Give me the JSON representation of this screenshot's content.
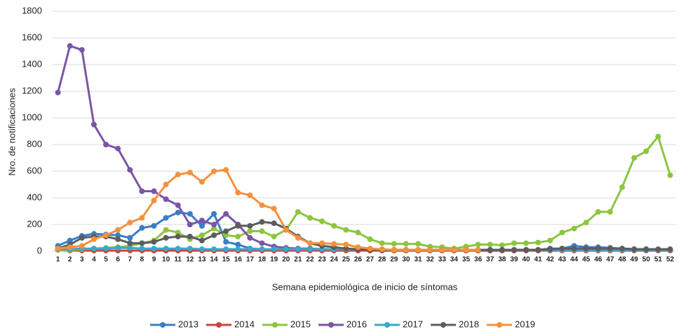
{
  "chart_data": {
    "type": "line",
    "y_label": "Nro. de notificaciones",
    "x_label": "Semana epidemiológica de inicio de síntomas",
    "categories": [
      "1",
      "2",
      "3",
      "4",
      "5",
      "6",
      "7",
      "8",
      "9",
      "10",
      "11",
      "12",
      "13",
      "14",
      "15",
      "16",
      "17",
      "18",
      "19",
      "20",
      "21",
      "22",
      "23",
      "24",
      "25",
      "26",
      "27",
      "28",
      "29",
      "30",
      "31",
      "32",
      "33",
      "34",
      "35",
      "36",
      "37",
      "38",
      "39",
      "40",
      "41",
      "42",
      "43",
      "44",
      "45",
      "46",
      "47",
      "48",
      "49",
      "50",
      "51",
      "52"
    ],
    "ylim": [
      0,
      1800
    ],
    "yticks": [
      0,
      200,
      400,
      600,
      800,
      1000,
      1200,
      1400,
      1600,
      1800
    ],
    "grid": true,
    "legend": "bottom",
    "series": [
      {
        "name": "2013",
        "color": "#3a7dc9",
        "values": [
          40,
          80,
          115,
          130,
          125,
          120,
          100,
          175,
          190,
          250,
          290,
          280,
          190,
          280,
          70,
          50,
          20,
          15,
          10,
          10,
          10,
          10,
          10,
          10,
          10,
          10,
          10,
          5,
          5,
          5,
          5,
          5,
          5,
          5,
          5,
          5,
          5,
          5,
          5,
          10,
          10,
          20,
          20,
          40,
          30,
          30,
          25,
          20,
          15,
          15,
          10,
          10
        ]
      },
      {
        "name": "2014",
        "color": "#d0403a",
        "values": [
          10,
          5,
          5,
          5,
          5,
          5,
          5,
          5,
          5,
          5,
          5,
          5,
          5,
          5,
          5,
          5,
          5,
          5,
          5,
          5,
          5,
          5,
          5,
          5,
          5,
          5,
          5,
          5,
          5,
          5,
          5,
          5,
          5,
          5,
          5,
          5,
          5,
          5,
          5,
          5,
          5,
          5,
          5,
          5,
          5,
          5,
          5,
          5,
          5,
          5,
          5,
          5
        ]
      },
      {
        "name": "2015",
        "color": "#8dc540",
        "values": [
          10,
          10,
          15,
          20,
          25,
          30,
          40,
          60,
          80,
          160,
          140,
          90,
          120,
          170,
          120,
          110,
          150,
          150,
          110,
          160,
          295,
          250,
          225,
          190,
          160,
          140,
          90,
          60,
          55,
          55,
          55,
          35,
          30,
          20,
          35,
          50,
          50,
          45,
          60,
          60,
          65,
          80,
          140,
          170,
          215,
          295,
          295,
          480,
          700,
          750,
          860,
          570
        ]
      },
      {
        "name": "2016",
        "color": "#7b55a6",
        "values": [
          1190,
          1540,
          1510,
          950,
          800,
          770,
          610,
          450,
          450,
          390,
          345,
          200,
          230,
          200,
          280,
          200,
          100,
          60,
          35,
          25,
          20,
          20,
          15,
          15,
          15,
          15,
          15,
          10,
          10,
          10,
          10,
          10,
          10,
          10,
          10,
          10,
          10,
          10,
          10,
          10,
          10,
          10,
          10,
          10,
          10,
          10,
          10,
          10,
          10,
          10,
          10,
          10
        ]
      },
      {
        "name": "2017",
        "color": "#38a9c9",
        "values": [
          15,
          15,
          20,
          20,
          20,
          25,
          25,
          20,
          20,
          20,
          20,
          20,
          15,
          15,
          15,
          15,
          15,
          15,
          15,
          15,
          15,
          15,
          15,
          15,
          15,
          15,
          15,
          10,
          10,
          10,
          10,
          10,
          10,
          10,
          10,
          10,
          10,
          10,
          10,
          10,
          10,
          10,
          10,
          10,
          10,
          10,
          10,
          10,
          10,
          10,
          10,
          10
        ]
      },
      {
        "name": "2018",
        "color": "#5d5d5d",
        "values": [
          20,
          50,
          100,
          110,
          110,
          90,
          60,
          60,
          70,
          100,
          110,
          110,
          80,
          120,
          150,
          190,
          190,
          220,
          210,
          170,
          110,
          60,
          40,
          30,
          20,
          15,
          10,
          10,
          10,
          10,
          10,
          10,
          10,
          10,
          10,
          10,
          10,
          10,
          10,
          10,
          10,
          15,
          20,
          20,
          20,
          20,
          20,
          20,
          15,
          15,
          15,
          15
        ]
      },
      {
        "name": "2019",
        "color": "#f5913d",
        "values": [
          20,
          30,
          40,
          90,
          120,
          160,
          215,
          250,
          380,
          500,
          575,
          590,
          520,
          600,
          610,
          440,
          420,
          345,
          320,
          160,
          100,
          60,
          60,
          55,
          50,
          30,
          20,
          15,
          10,
          10,
          10,
          10,
          10,
          10,
          10,
          10,
          null,
          null,
          null,
          null,
          null,
          null,
          null,
          null,
          null,
          null,
          null,
          null,
          null,
          null,
          null,
          null
        ]
      }
    ]
  }
}
